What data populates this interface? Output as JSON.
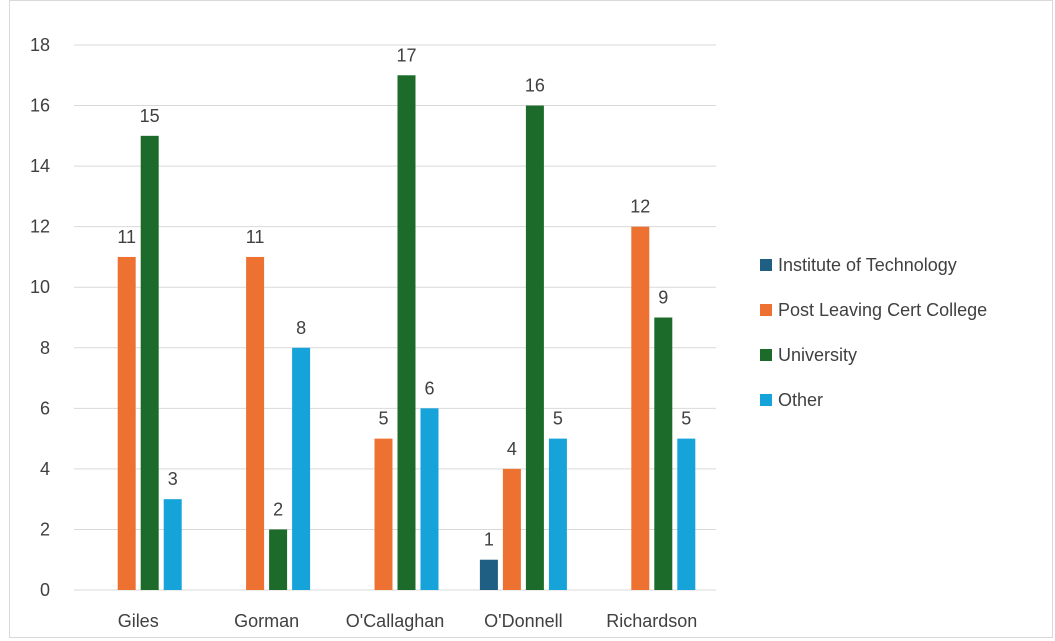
{
  "chart_data": {
    "type": "bar",
    "title": "",
    "xlabel": "",
    "ylabel": "",
    "categories": [
      "Giles",
      "Gorman",
      "O'Callaghan",
      "O'Donnell",
      "Richardson"
    ],
    "series": [
      {
        "name": "Institute of Technology",
        "color": "#1f5f84",
        "values": [
          null,
          null,
          null,
          1,
          null
        ]
      },
      {
        "name": "Post Leaving Cert College",
        "color": "#ed7232",
        "values": [
          11,
          11,
          5,
          4,
          12
        ]
      },
      {
        "name": "University",
        "color": "#1c6b2a",
        "values": [
          15,
          2,
          17,
          16,
          9
        ]
      },
      {
        "name": "Other",
        "color": "#16a3d9",
        "values": [
          3,
          8,
          6,
          5,
          5
        ]
      }
    ],
    "ylim": [
      0,
      18
    ],
    "yticks": [
      "0",
      "2",
      "4",
      "6",
      "8",
      "10",
      "12",
      "14",
      "16",
      "18"
    ],
    "grid": true,
    "legend_position": "right",
    "data_labels": true
  }
}
